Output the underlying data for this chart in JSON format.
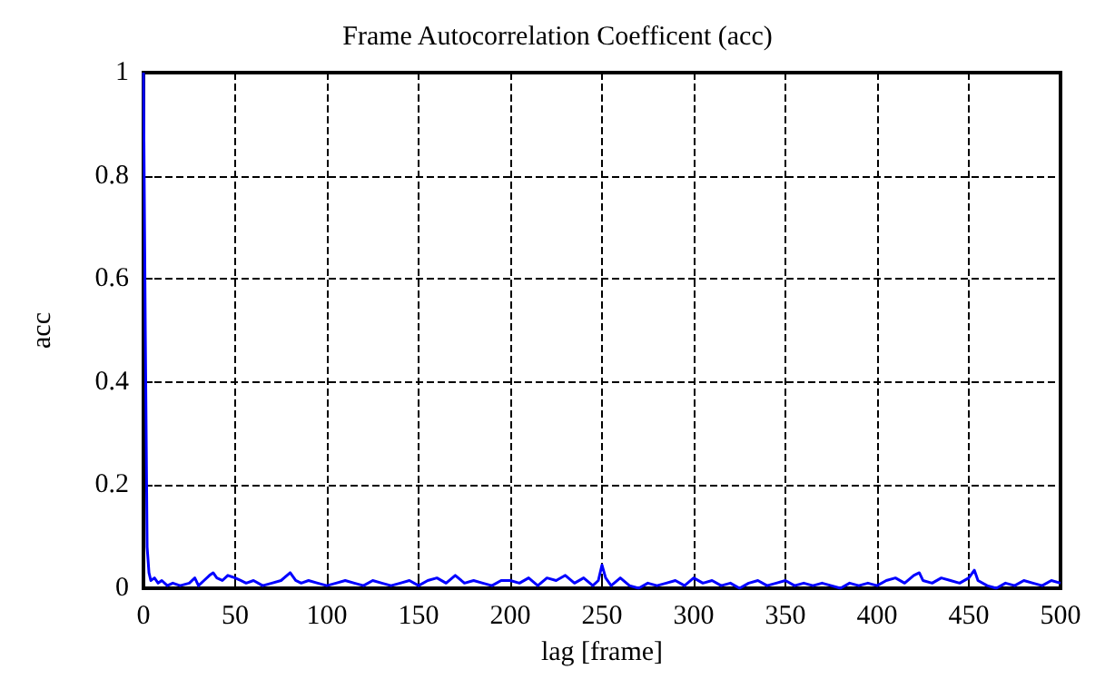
{
  "chart_data": {
    "type": "line",
    "title": "Frame Autocorrelation Coefficent (acc)",
    "xlabel": "lag [frame]",
    "ylabel": "acc",
    "series": [
      {
        "color": "#0000ff",
        "x": [
          0,
          1,
          2,
          3,
          4,
          6,
          8,
          10,
          13,
          16,
          20,
          25,
          28,
          30,
          33,
          36,
          38,
          40,
          43,
          46,
          50,
          53,
          56,
          60,
          65,
          70,
          75,
          80,
          83,
          86,
          90,
          95,
          100,
          105,
          110,
          115,
          120,
          125,
          130,
          135,
          140,
          145,
          150,
          155,
          160,
          165,
          170,
          175,
          180,
          185,
          190,
          195,
          200,
          205,
          210,
          215,
          220,
          225,
          230,
          235,
          240,
          245,
          248,
          250,
          252,
          255,
          260,
          265,
          270,
          275,
          280,
          285,
          290,
          295,
          300,
          305,
          310,
          315,
          320,
          325,
          330,
          335,
          340,
          345,
          350,
          355,
          360,
          365,
          370,
          375,
          380,
          385,
          390,
          395,
          400,
          405,
          410,
          415,
          420,
          423,
          425,
          430,
          435,
          440,
          445,
          450,
          453,
          455,
          460,
          465,
          470,
          475,
          480,
          485,
          490,
          495,
          500
        ],
        "values": [
          1,
          0.5,
          0.08,
          0.03,
          0.015,
          0.02,
          0.01,
          0.015,
          0.005,
          0.01,
          0.005,
          0.01,
          0.02,
          0.005,
          0.015,
          0.025,
          0.03,
          0.02,
          0.015,
          0.025,
          0.02,
          0.015,
          0.01,
          0.015,
          0.005,
          0.01,
          0.015,
          0.03,
          0.015,
          0.01,
          0.015,
          0.01,
          0.005,
          0.01,
          0.015,
          0.01,
          0.005,
          0.015,
          0.01,
          0.005,
          0.01,
          0.015,
          0.005,
          0.015,
          0.02,
          0.01,
          0.025,
          0.01,
          0.015,
          0.01,
          0.005,
          0.015,
          0.015,
          0.01,
          0.02,
          0.005,
          0.02,
          0.015,
          0.025,
          0.01,
          0.02,
          0.005,
          0.015,
          0.045,
          0.02,
          0.005,
          0.02,
          0.005,
          0.0,
          0.01,
          0.005,
          0.01,
          0.015,
          0.005,
          0.02,
          0.01,
          0.015,
          0.005,
          0.01,
          0.0,
          0.01,
          0.015,
          0.005,
          0.01,
          0.015,
          0.005,
          0.01,
          0.005,
          0.01,
          0.005,
          0.0,
          0.01,
          0.005,
          0.01,
          0.005,
          0.015,
          0.02,
          0.01,
          0.025,
          0.03,
          0.015,
          0.01,
          0.02,
          0.015,
          0.01,
          0.02,
          0.035,
          0.015,
          0.005,
          0.0,
          0.01,
          0.005,
          0.015,
          0.01,
          0.005,
          0.015,
          0.01
        ]
      }
    ],
    "xlim": [
      0,
      500
    ],
    "xticks": [
      0,
      50,
      100,
      150,
      200,
      250,
      300,
      350,
      400,
      450,
      500
    ],
    "ylim": [
      0,
      1
    ],
    "yticks": [
      0,
      0.2,
      0.4,
      0.6,
      0.8,
      1
    ],
    "grid": true,
    "line_style": "solid",
    "marker": "none"
  }
}
